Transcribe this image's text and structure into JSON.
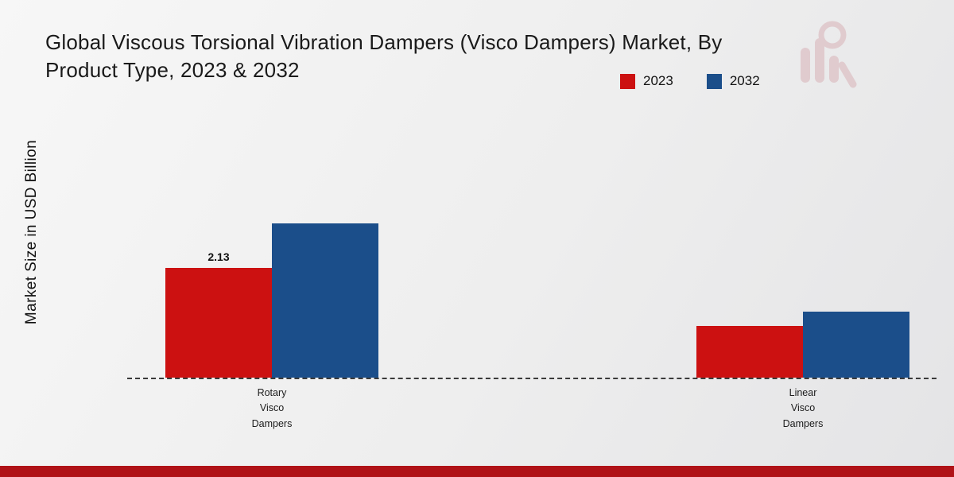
{
  "header": {
    "title": "Global Viscous Torsional Vibration Dampers (Visco Dampers) Market, By Product Type, 2023 & 2032"
  },
  "footer": {
    "bar_color": "#b01217"
  },
  "watermark_icon": "market-research-chart-logo",
  "chart_data": {
    "type": "bar",
    "title": "Global Viscous Torsional Vibration Dampers (Visco Dampers) Market, By Product Type, 2023 & 2032",
    "xlabel": "",
    "ylabel": "Market Size in USD Billion",
    "categories": [
      "Rotary Visco Dampers",
      "Linear Visco Dampers"
    ],
    "category_lines": [
      [
        "Rotary",
        "Visco",
        "Dampers"
      ],
      [
        "Linear",
        "Visco",
        "Dampers"
      ]
    ],
    "series": [
      {
        "name": "2023",
        "color": "#cc1111",
        "values": [
          2.13,
          1.0
        ],
        "data_labels": [
          "2.13",
          ""
        ]
      },
      {
        "name": "2032",
        "color": "#1b4e8a",
        "values": [
          2.98,
          1.27
        ],
        "data_labels": [
          "",
          ""
        ]
      }
    ],
    "ylim": [
      0,
      5
    ],
    "grid": false,
    "legend_position": "top-right",
    "baseline_style": "dashed",
    "y_axis_ticks_visible": false
  }
}
